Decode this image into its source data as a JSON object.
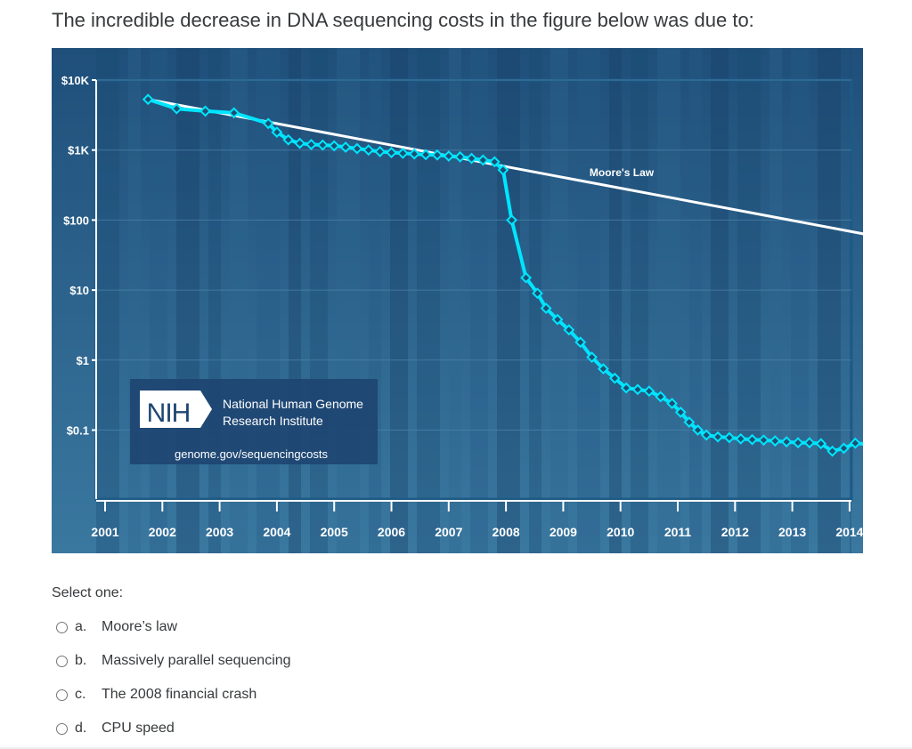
{
  "question": {
    "text": "The incredible decrease in DNA sequencing costs in the figure below was due to:"
  },
  "figure": {
    "colors": {
      "background_top": "#1f4f7a",
      "background_bottom": "#3a78a0",
      "frame": "#1d5a86",
      "cost_line": "#00e5ff",
      "moores_law_line": "#ffffff",
      "logo_box": "#1e4572"
    },
    "logo": {
      "mark": "NIH",
      "org_line1": "National Human Genome",
      "org_line2": "Research Institute",
      "url": "genome.gov/sequencingcosts"
    },
    "moores_law_label": "Moore's Law"
  },
  "chart_data": {
    "type": "line",
    "yscale": "log",
    "ylim": [
      0.015,
      14000
    ],
    "xlim": [
      2001.2,
      2014.5
    ],
    "x_ticks": [
      2001,
      2002,
      2003,
      2004,
      2005,
      2006,
      2007,
      2008,
      2009,
      2010,
      2011,
      2012,
      2013,
      2014
    ],
    "y_ticks": [
      {
        "value": 10000,
        "label": "$10K"
      },
      {
        "value": 1000,
        "label": "$1K"
      },
      {
        "value": 100,
        "label": "$100"
      },
      {
        "value": 10,
        "label": "$10"
      },
      {
        "value": 1,
        "label": "$1"
      },
      {
        "value": 0.1,
        "label": "$0.1"
      }
    ],
    "series": [
      {
        "name": "",
        "x": [
          2001.75,
          2002.25,
          2002.75,
          2003.25,
          2003.85,
          2004.0,
          2004.2,
          2004.4,
          2004.6,
          2004.8,
          2005.0,
          2005.2,
          2005.4,
          2005.6,
          2005.8,
          2006.0,
          2006.2,
          2006.4,
          2006.6,
          2006.8,
          2007.0,
          2007.2,
          2007.4,
          2007.6,
          2007.8,
          2007.95,
          2008.1,
          2008.35,
          2008.55,
          2008.7,
          2008.9,
          2009.1,
          2009.3,
          2009.5,
          2009.7,
          2009.9,
          2010.1,
          2010.3,
          2010.5,
          2010.7,
          2010.9,
          2011.05,
          2011.2,
          2011.35,
          2011.5,
          2011.7,
          2011.9,
          2012.1,
          2012.3,
          2012.5,
          2012.7,
          2012.9,
          2013.1,
          2013.3,
          2013.5,
          2013.7,
          2013.9,
          2014.1,
          2014.3
        ],
        "y": [
          5300,
          3900,
          3600,
          3400,
          2400,
          1800,
          1400,
          1250,
          1200,
          1180,
          1150,
          1100,
          1050,
          1000,
          950,
          920,
          900,
          880,
          860,
          850,
          820,
          800,
          760,
          720,
          680,
          520,
          100,
          15,
          9,
          5.5,
          3.8,
          2.7,
          1.8,
          1.1,
          0.75,
          0.55,
          0.4,
          0.38,
          0.36,
          0.3,
          0.24,
          0.18,
          0.13,
          0.1,
          0.085,
          0.08,
          0.078,
          0.075,
          0.073,
          0.072,
          0.07,
          0.068,
          0.066,
          0.066,
          0.064,
          0.05,
          0.055,
          0.065,
          0.063
        ]
      },
      {
        "name": "Moore's Law",
        "x": [
          2001.75,
          2014.5
        ],
        "y": [
          5300,
          58
        ]
      }
    ]
  },
  "answers": {
    "prompt": "Select one:",
    "options": [
      {
        "letter": "a.",
        "label": "Moore’s law"
      },
      {
        "letter": "b.",
        "label": "Massively parallel sequencing"
      },
      {
        "letter": "c.",
        "label": "The 2008 financial crash"
      },
      {
        "letter": "d.",
        "label": "CPU speed"
      }
    ]
  }
}
